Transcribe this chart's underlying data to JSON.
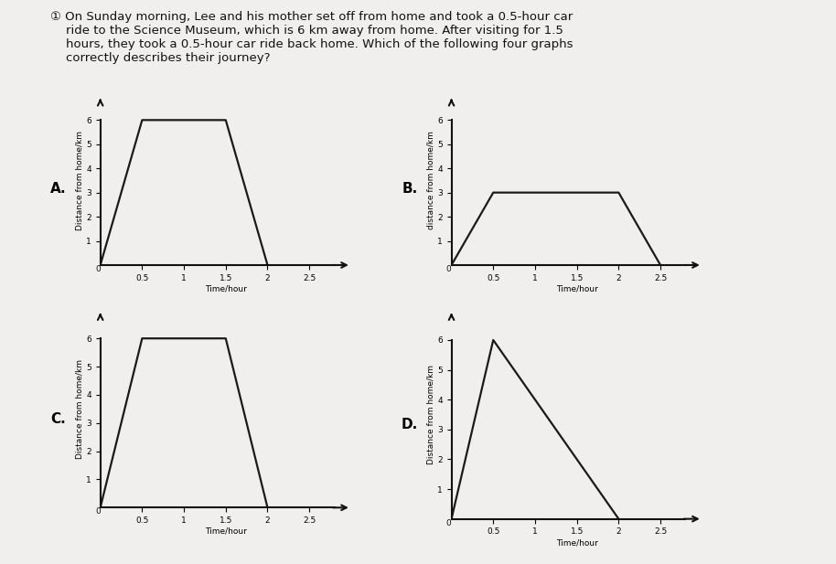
{
  "title_text": "① On Sunday morning, Lee and his mother set off from home and took a 0.5-hour car\n    ride to the Science Museum, which is 6 km away from home. After visiting for 1.5\n    hours, they took a 0.5-hour car ride back home. Which of the following four graphs\n    correctly describes their journey?",
  "graphs": [
    {
      "label": "A.",
      "ylabel": "Distance from home/km",
      "xlabel": "Time/hour",
      "ylim": [
        0,
        7.0
      ],
      "xlim": [
        0,
        3.0
      ],
      "points": [
        [
          0,
          0
        ],
        [
          0.5,
          6
        ],
        [
          1.5,
          6
        ],
        [
          2.0,
          0
        ]
      ]
    },
    {
      "label": "B.",
      "ylabel": "distance from home/km",
      "xlabel": "Time/hour",
      "ylim": [
        0,
        7.0
      ],
      "xlim": [
        0,
        3.0
      ],
      "points": [
        [
          0,
          0
        ],
        [
          0.5,
          3
        ],
        [
          2.0,
          3
        ],
        [
          2.5,
          0
        ]
      ]
    },
    {
      "label": "C.",
      "ylabel": "Distance from home/km",
      "xlabel": "Time/hour",
      "ylim": [
        0,
        7.0
      ],
      "xlim": [
        0,
        3.0
      ],
      "points": [
        [
          0,
          0
        ],
        [
          0.5,
          6
        ],
        [
          1.5,
          6
        ],
        [
          2.0,
          0
        ]
      ]
    },
    {
      "label": "D.",
      "ylabel": "Distance from home/km",
      "xlabel": "Time/hour",
      "ylim": [
        0,
        7.0
      ],
      "xlim": [
        0,
        3.0
      ],
      "points": [
        [
          0,
          0
        ],
        [
          0.5,
          6
        ],
        [
          2.0,
          0
        ]
      ]
    }
  ],
  "x_ticks": [
    0.5,
    1,
    1.5,
    2,
    2.5
  ],
  "x_tick_labels": [
    "0.5",
    "1",
    "1.5",
    "2",
    "2.5"
  ],
  "y_ticks": [
    1,
    2,
    3,
    4,
    5,
    6
  ],
  "line_color": "#1a1a1a",
  "line_width": 1.6,
  "axis_color": "#111111",
  "label_fontsize": 6.5,
  "tick_fontsize": 6.5,
  "graph_label_fontsize": 11,
  "bg_color": "#f0efed",
  "title_fontsize": 9.5,
  "title_color": "#111111"
}
